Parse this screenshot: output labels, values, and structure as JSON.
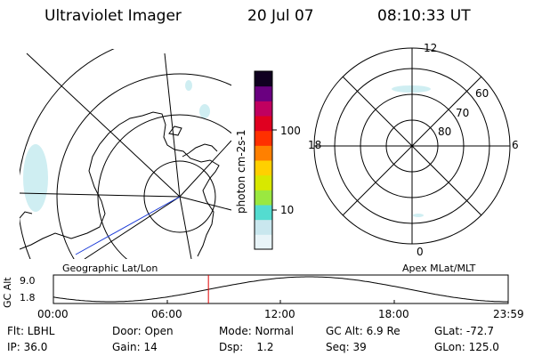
{
  "header": {
    "instrument": "Ultraviolet Imager",
    "date": "20 Jul 07",
    "time": "08:10:33 UT"
  },
  "colorbar": {
    "unit_label": "photon cm-2s-1",
    "ticks": [
      "100",
      "10"
    ],
    "colors": [
      "#e8f4f8",
      "#c9e7ee",
      "#54dcd0",
      "#9ae840",
      "#d8e800",
      "#ffd000",
      "#ff8000",
      "#ff3000",
      "#e00020",
      "#c00060",
      "#6a0080",
      "#100020"
    ]
  },
  "geo_panel": {
    "caption": "Geographic Lat/Lon"
  },
  "polar_panel": {
    "caption": "Apex MLat/MLT",
    "mlt_labels": {
      "top": "12",
      "bottom": "0",
      "left": "18",
      "right": "6"
    },
    "mlat_labels": [
      "60",
      "70",
      "80"
    ]
  },
  "timeline": {
    "ylabel": "GC Alt",
    "y_ticks": [
      "9.0",
      "1.8"
    ],
    "x_ticks": [
      "00:00",
      "06:00",
      "12:00",
      "18:00",
      "23:59"
    ],
    "current_marker_hours": 8.18
  },
  "status": {
    "filter": "Flt: LBHL",
    "ip": "IP: 36.0",
    "door": "Door: Open",
    "gain": "Gain: 14",
    "mode": "Mode: Normal",
    "dsp": "Dsp:    1.2",
    "gc_alt": "GC Alt: 6.9 Re",
    "seq": "Seq: 39",
    "glat": "GLat: -72.7",
    "glon": "GLon: 125.0"
  }
}
